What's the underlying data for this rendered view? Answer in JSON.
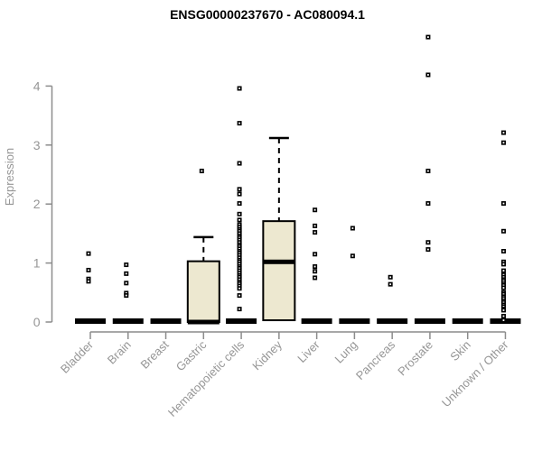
{
  "chart_data": {
    "type": "boxplot",
    "title": "ENSG00000237670 - AC080094.1",
    "ylabel": "Expression",
    "ylim": [
      0,
      4
    ],
    "yticks": [
      0,
      1,
      2,
      3,
      4
    ],
    "grid": false,
    "legend": "none",
    "box_fill": "#EDE8D0",
    "box_stroke": "#000000",
    "axis_color": "#8C8C8C",
    "label_color": "#969696",
    "groups": [
      {
        "label": "Bladder",
        "box": null,
        "zero_bar": true,
        "outliers": [
          1.16,
          0.88,
          0.73,
          0.69
        ]
      },
      {
        "label": "Brain",
        "box": null,
        "zero_bar": true,
        "outliers": [
          0.97,
          0.82,
          0.66,
          0.49,
          0.45
        ]
      },
      {
        "label": "Breast",
        "box": null,
        "zero_bar": true,
        "outliers": []
      },
      {
        "label": "Gastric",
        "zero_bar": true,
        "box": {
          "q1": 0,
          "median": 0,
          "q3": 1.03,
          "whisker_high": 1.44
        },
        "outliers": [
          2.56
        ]
      },
      {
        "label": "Hematopoietic cells",
        "box": null,
        "zero_bar": true,
        "outliers": [
          3.96,
          3.37,
          2.69,
          2.25,
          2.17,
          2.01,
          1.83,
          1.73,
          1.65,
          1.61,
          1.57,
          1.54,
          1.5,
          1.46,
          1.43,
          1.39,
          1.35,
          1.31,
          1.28,
          1.24,
          1.2,
          1.17,
          1.13,
          1.09,
          1.05,
          1.02,
          0.98,
          0.94,
          0.91,
          0.87,
          0.83,
          0.79,
          0.76,
          0.72,
          0.68,
          0.65,
          0.61,
          0.57,
          0.45,
          0.22
        ]
      },
      {
        "label": "Kidney",
        "zero_bar": false,
        "box": {
          "q1": 0.03,
          "median": 1.02,
          "q3": 1.71,
          "whisker_high": 3.12
        },
        "outliers": []
      },
      {
        "label": "Liver",
        "box": null,
        "zero_bar": true,
        "outliers": [
          1.9,
          1.63,
          1.52,
          1.15,
          0.94,
          0.86,
          0.75
        ]
      },
      {
        "label": "Lung",
        "box": null,
        "zero_bar": true,
        "outliers": [
          1.59,
          1.12
        ]
      },
      {
        "label": "Pancreas",
        "box": null,
        "zero_bar": true,
        "outliers": [
          0.76,
          0.64
        ]
      },
      {
        "label": "Prostate",
        "box": null,
        "zero_bar": true,
        "outliers": [
          4.83,
          4.19,
          2.56,
          2.01,
          1.35,
          1.23
        ]
      },
      {
        "label": "Skin",
        "box": null,
        "zero_bar": true,
        "outliers": []
      },
      {
        "label": "Unknown / Other",
        "box": null,
        "zero_bar": true,
        "outliers": [
          3.21,
          3.04,
          2.01,
          1.54,
          1.2,
          1.02,
          0.98,
          0.87,
          0.8,
          0.76,
          0.72,
          0.69,
          0.65,
          0.62,
          0.58,
          0.5,
          0.47,
          0.43,
          0.4,
          0.36,
          0.33,
          0.29,
          0.26,
          0.22,
          0.2,
          0.1,
          0.03
        ]
      }
    ]
  }
}
